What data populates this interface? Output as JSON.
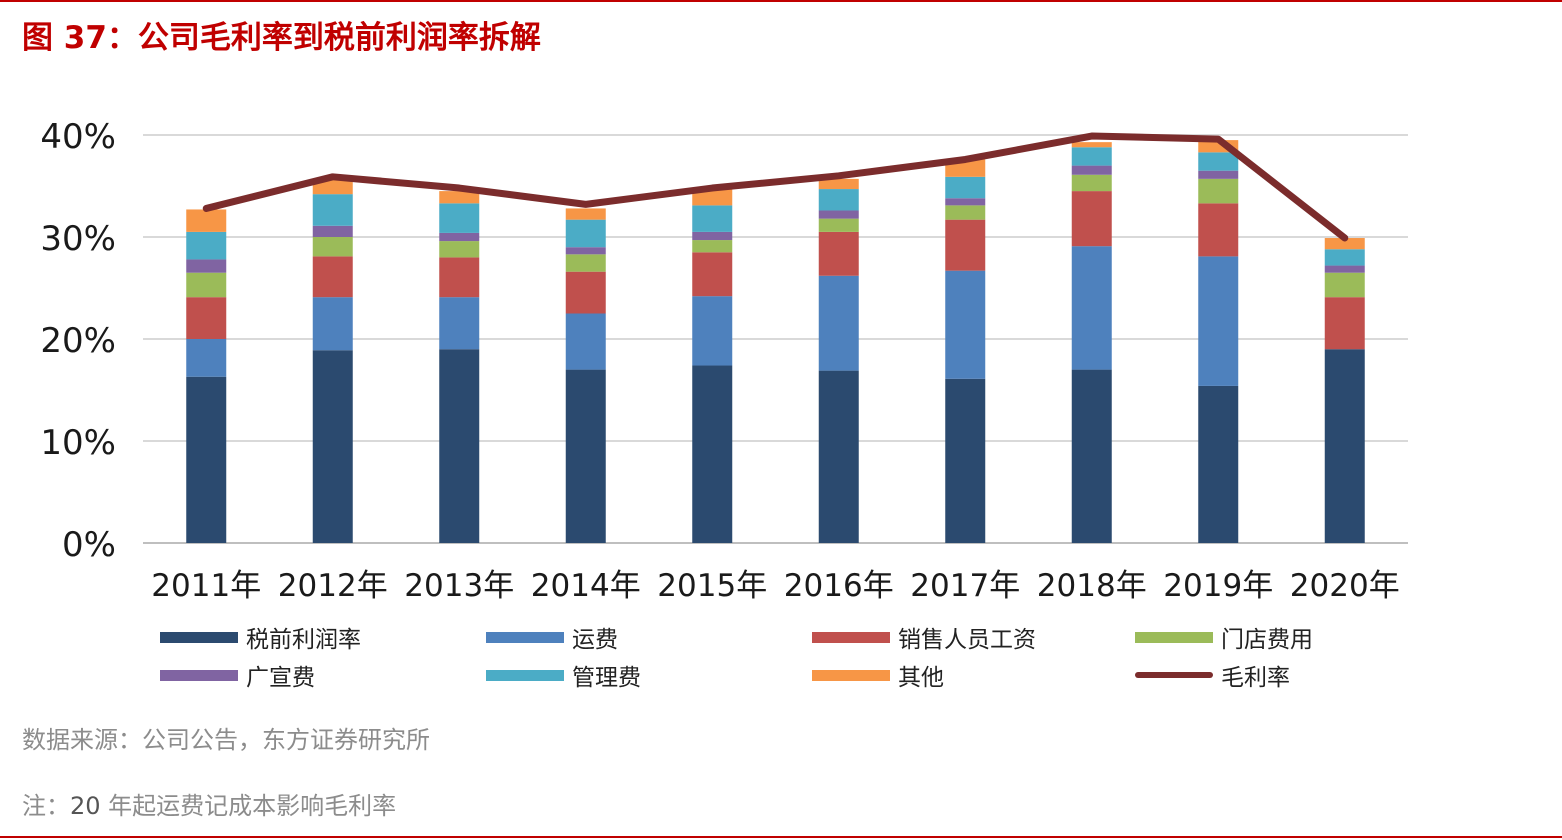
{
  "figure": {
    "title": "图 37：公司毛利率到税前利润率拆解",
    "source": "数据来源：公司公告，东方证券研究所",
    "note_prefix": "注：",
    "note_year": "20",
    "note_suffix": " 年起运费记成本影响毛利率"
  },
  "colors": {
    "accent": "#c00000",
    "grid": "#d9d9d9",
    "axis_text": "#1a1a1a"
  },
  "chart_data": {
    "type": "bar",
    "stacked": true,
    "categories": [
      "2011年",
      "2012年",
      "2013年",
      "2014年",
      "2015年",
      "2016年",
      "2017年",
      "2018年",
      "2019年",
      "2020年"
    ],
    "y_ticks": [
      "0%",
      "10%",
      "20%",
      "30%",
      "40%"
    ],
    "ylim": [
      0,
      40
    ],
    "grid": true,
    "legend_position": "bottom",
    "series": [
      {
        "name": "税前利润率",
        "color": "#2b4a6f",
        "values": [
          16.3,
          18.9,
          19.0,
          17.0,
          17.4,
          16.9,
          16.1,
          17.0,
          15.4,
          19.0
        ]
      },
      {
        "name": "运费",
        "color": "#4e81bd",
        "values": [
          3.7,
          5.2,
          5.1,
          5.5,
          6.8,
          9.3,
          10.6,
          12.1,
          12.7,
          0
        ]
      },
      {
        "name": "销售人员工资",
        "color": "#c0504d",
        "values": [
          4.1,
          4.0,
          3.9,
          4.1,
          4.3,
          4.3,
          5.0,
          5.4,
          5.2,
          5.1
        ]
      },
      {
        "name": "门店费用",
        "color": "#9bbb59",
        "values": [
          2.4,
          1.9,
          1.6,
          1.7,
          1.2,
          1.3,
          1.4,
          1.6,
          2.4,
          2.4
        ]
      },
      {
        "name": "广宣费",
        "color": "#8064a2",
        "values": [
          1.3,
          1.1,
          0.8,
          0.7,
          0.8,
          0.8,
          0.7,
          0.9,
          0.8,
          0.7
        ]
      },
      {
        "name": "管理费",
        "color": "#4bacc6",
        "values": [
          2.7,
          3.1,
          2.9,
          2.7,
          2.6,
          2.1,
          2.1,
          1.8,
          1.8,
          1.6
        ]
      },
      {
        "name": "其他",
        "color": "#f79646",
        "values": [
          2.2,
          1.4,
          1.2,
          1.1,
          1.6,
          1.0,
          1.7,
          0.5,
          1.2,
          1.1
        ]
      }
    ],
    "line_series": {
      "name": "毛利率",
      "color": "#7b2c2c",
      "values": [
        32.8,
        35.9,
        34.8,
        33.2,
        34.8,
        36.0,
        37.6,
        39.9,
        39.6,
        29.9
      ]
    }
  }
}
